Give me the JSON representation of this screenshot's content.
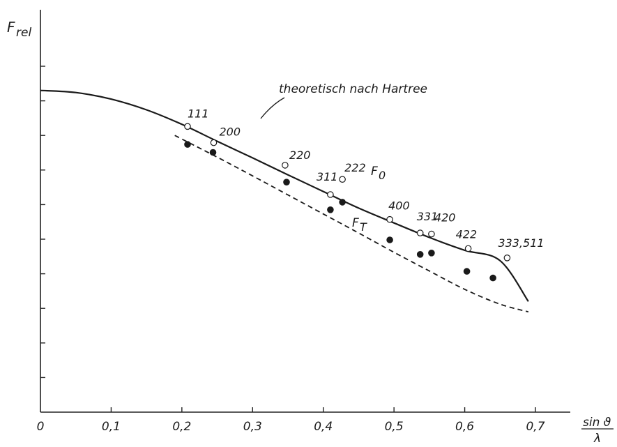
{
  "chart_data": {
    "type": "line",
    "title": "",
    "ylabel": "F",
    "ylabel_sub": "rel",
    "xlabel_num": "sin ϑ",
    "xlabel_den": "λ",
    "xlim": [
      0,
      0.7
    ],
    "ylim": [
      0,
      1.08
    ],
    "x_ticks": [
      0,
      0.1,
      0.2,
      0.3,
      0.4,
      0.5,
      0.6,
      0.7
    ],
    "x_tick_labels": [
      "0",
      "0,1",
      "0,2",
      "0,3",
      "0,4",
      "0,5",
      "0,6",
      "0,7"
    ],
    "y_ticks": [
      0.1,
      0.2,
      0.3,
      0.4,
      0.5,
      0.6,
      0.7,
      0.8,
      0.9,
      1.0
    ],
    "grid": false,
    "annotation": "theoretisch nach Hartree",
    "series": [
      {
        "name": "F",
        "subscript": "0",
        "style": "solid",
        "curve": {
          "x": [
            0,
            0.05,
            0.1,
            0.15,
            0.2,
            0.25,
            0.3,
            0.35,
            0.4,
            0.45,
            0.5,
            0.55,
            0.6,
            0.65,
            0.69
          ],
          "y": [
            0.93,
            0.924,
            0.905,
            0.874,
            0.832,
            0.783,
            0.735,
            0.686,
            0.638,
            0.59,
            0.547,
            0.505,
            0.468,
            0.438,
            0.32
          ]
        },
        "points": [
          {
            "x": 0.208,
            "y": 0.826,
            "label": "111"
          },
          {
            "x": 0.245,
            "y": 0.779,
            "label": "200"
          },
          {
            "x": 0.346,
            "y": 0.714,
            "label": "220"
          },
          {
            "x": 0.41,
            "y": 0.629,
            "label": "311"
          },
          {
            "x": 0.427,
            "y": 0.673,
            "label": "222"
          },
          {
            "x": 0.494,
            "y": 0.557,
            "label": "400"
          },
          {
            "x": 0.537,
            "y": 0.518,
            "label": "331"
          },
          {
            "x": 0.553,
            "y": 0.515,
            "label": "420"
          },
          {
            "x": 0.605,
            "y": 0.473,
            "label": "422"
          },
          {
            "x": 0.66,
            "y": 0.446,
            "label": "333,511"
          }
        ]
      },
      {
        "name": "F",
        "subscript": "T",
        "style": "dashed",
        "curve": {
          "x": [
            0.19,
            0.25,
            0.3,
            0.35,
            0.4,
            0.45,
            0.5,
            0.55,
            0.6,
            0.65,
            0.69
          ],
          "y": [
            0.8,
            0.737,
            0.683,
            0.628,
            0.573,
            0.518,
            0.462,
            0.408,
            0.355,
            0.312,
            0.29
          ]
        },
        "points": [
          {
            "x": 0.208,
            "y": 0.774
          },
          {
            "x": 0.244,
            "y": 0.751
          },
          {
            "x": 0.348,
            "y": 0.665
          },
          {
            "x": 0.41,
            "y": 0.585
          },
          {
            "x": 0.427,
            "y": 0.607
          },
          {
            "x": 0.494,
            "y": 0.498
          },
          {
            "x": 0.537,
            "y": 0.456
          },
          {
            "x": 0.553,
            "y": 0.46
          },
          {
            "x": 0.603,
            "y": 0.407
          },
          {
            "x": 0.64,
            "y": 0.388
          }
        ]
      }
    ]
  }
}
